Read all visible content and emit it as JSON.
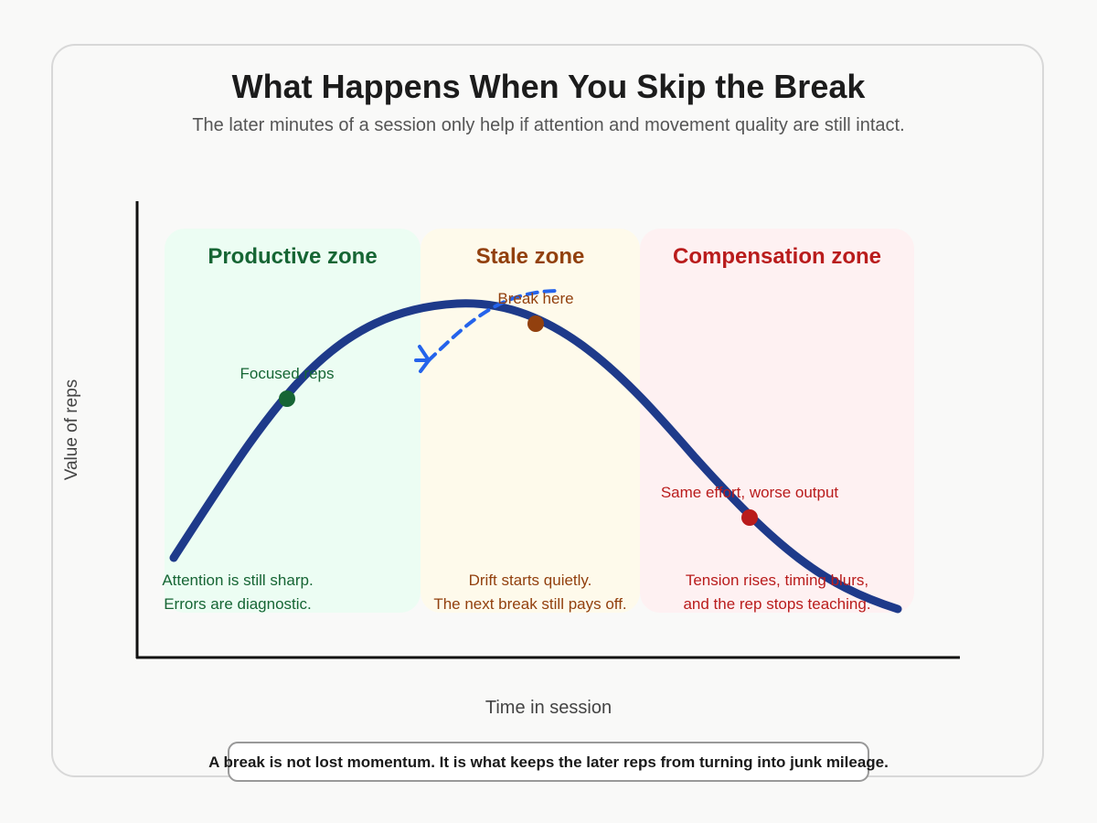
{
  "title": "What Happens When You Skip the Break",
  "subtitle": "The later minutes of a session only help if attention and movement quality are still intact.",
  "axes": {
    "y_label": "Value of reps",
    "x_label": "Time in session"
  },
  "zones": [
    {
      "name": "Productive zone",
      "color": "#166534",
      "fill": "#ecfdf3",
      "caption": [
        "Attention is still sharp.",
        "Errors are diagnostic."
      ]
    },
    {
      "name": "Stale zone",
      "color": "#92400e",
      "fill": "#fefaeb",
      "caption": [
        "Drift starts quietly.",
        "The next break still pays off."
      ]
    },
    {
      "name": "Compensation zone",
      "color": "#b91c1c",
      "fill": "#fef1f2",
      "caption": [
        "Tension rises, timing blurs,",
        "and the rep stops teaching."
      ]
    }
  ],
  "markers": [
    {
      "label": "Focused reps",
      "color": "#166534"
    },
    {
      "label": "Break here",
      "color": "#92400e"
    },
    {
      "label": "Same effort, worse output",
      "color": "#b91c1c"
    }
  ],
  "curve_color": "#1e3a8a",
  "break_arrow_color": "#2563eb",
  "footer": "A break is not lost momentum. It is what keeps the later reps from turning into junk mileage."
}
